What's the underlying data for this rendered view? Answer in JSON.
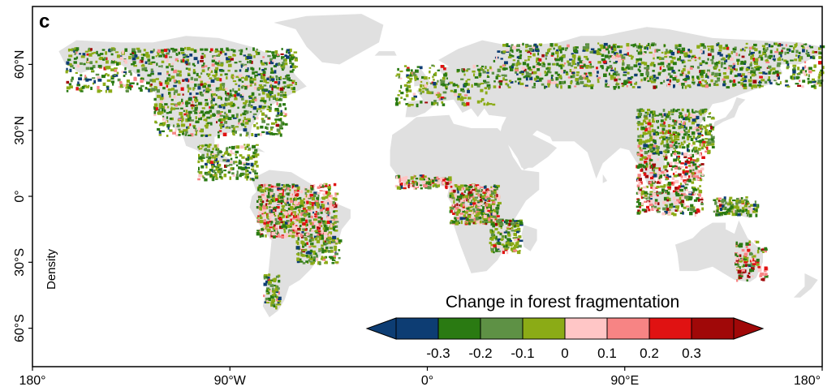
{
  "panel_label": "c",
  "y_axis_label": "Density",
  "lat_ticks": [
    {
      "lat": 60,
      "label": "60°N"
    },
    {
      "lat": 30,
      "label": "30°N"
    },
    {
      "lat": 0,
      "label": "0°"
    },
    {
      "lat": -30,
      "label": "30°S"
    },
    {
      "lat": -60,
      "label": "60°S"
    }
  ],
  "lon_ticks": [
    {
      "lon": -180,
      "label": "180°"
    },
    {
      "lon": -90,
      "label": "90°W"
    },
    {
      "lon": 0,
      "label": "0°"
    },
    {
      "lon": 90,
      "label": "90°E"
    },
    {
      "lon": 180,
      "label": "180°"
    }
  ],
  "legend": {
    "title": "Change in forest fragmentation",
    "colors": [
      "#0d3d73",
      "#2a7a12",
      "#5e9145",
      "#8bab16",
      "#ffc6c6",
      "#f78484",
      "#e01212",
      "#a00808"
    ],
    "under_color": "#0d3d73",
    "over_color": "#a00808",
    "labels": [
      "-0.3",
      "-0.2",
      "-0.1",
      "0",
      "0.1",
      "0.2",
      "0.3"
    ]
  },
  "colors": {
    "land": "#e0e0e0",
    "forest_palette": [
      "#0d3d73",
      "#2a7a12",
      "#5e9145",
      "#8bab16",
      "#ffc6c6",
      "#f78484",
      "#e01212",
      "#a00808"
    ]
  }
}
